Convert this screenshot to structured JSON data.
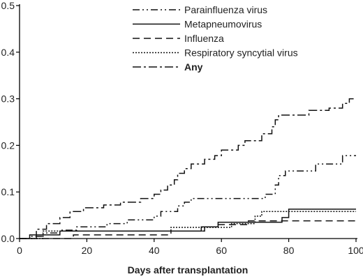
{
  "chart_data": {
    "type": "line",
    "title": "",
    "xlabel": "Days after transplantation",
    "ylabel": "",
    "xlim": [
      0,
      100
    ],
    "ylim": [
      0,
      0.5
    ],
    "x_ticks": [
      0,
      20,
      40,
      60,
      80,
      100
    ],
    "x_tick_labels": [
      "0",
      "20",
      "40",
      "60",
      "80",
      "100"
    ],
    "y_ticks": [
      0.0,
      0.1,
      0.2,
      0.3,
      0.4,
      0.5
    ],
    "y_tick_labels": [
      "0.0",
      "0.1",
      "0.2",
      "0.3",
      "0.4",
      "0.5"
    ],
    "grid": false,
    "legend_position": "top-center",
    "step": true,
    "series": [
      {
        "name": "Parainfluenza virus",
        "dash": "dashdotdot",
        "points": [
          [
            0,
            0
          ],
          [
            3,
            0
          ],
          [
            3,
            0.005
          ],
          [
            7,
            0.005
          ],
          [
            7,
            0.012
          ],
          [
            12,
            0.012
          ],
          [
            12,
            0.018
          ],
          [
            17,
            0.018
          ],
          [
            17,
            0.025
          ],
          [
            26,
            0.025
          ],
          [
            26,
            0.032
          ],
          [
            32,
            0.032
          ],
          [
            32,
            0.04
          ],
          [
            40,
            0.04
          ],
          [
            40,
            0.048
          ],
          [
            42,
            0.048
          ],
          [
            42,
            0.058
          ],
          [
            47,
            0.058
          ],
          [
            47,
            0.07
          ],
          [
            49,
            0.07
          ],
          [
            49,
            0.078
          ],
          [
            51,
            0.078
          ],
          [
            51,
            0.086
          ],
          [
            73,
            0.086
          ],
          [
            73,
            0.095
          ],
          [
            76,
            0.095
          ],
          [
            76,
            0.115
          ],
          [
            77,
            0.115
          ],
          [
            77,
            0.135
          ],
          [
            79,
            0.135
          ],
          [
            79,
            0.145
          ],
          [
            88,
            0.145
          ],
          [
            88,
            0.16
          ],
          [
            96,
            0.16
          ],
          [
            96,
            0.178
          ],
          [
            100,
            0.178
          ]
        ]
      },
      {
        "name": "Metapneumovirus",
        "dash": "solid",
        "points": [
          [
            0,
            0
          ],
          [
            3,
            0
          ],
          [
            3,
            0.008
          ],
          [
            12,
            0.008
          ],
          [
            12,
            0.016
          ],
          [
            54,
            0.016
          ],
          [
            54,
            0.025
          ],
          [
            59,
            0.025
          ],
          [
            59,
            0.035
          ],
          [
            78,
            0.035
          ],
          [
            78,
            0.045
          ],
          [
            80,
            0.045
          ],
          [
            80,
            0.063
          ],
          [
            100,
            0.063
          ]
        ]
      },
      {
        "name": "Influenza",
        "dash": "dashed",
        "points": [
          [
            0,
            0
          ],
          [
            16,
            0
          ],
          [
            16,
            0.008
          ],
          [
            45,
            0.008
          ],
          [
            45,
            0.016
          ],
          [
            55,
            0.016
          ],
          [
            55,
            0.025
          ],
          [
            59,
            0.025
          ],
          [
            59,
            0.03
          ],
          [
            68,
            0.03
          ],
          [
            68,
            0.038
          ],
          [
            100,
            0.038
          ]
        ]
      },
      {
        "name": "Respiratory syncytial virus",
        "dash": "dotted",
        "points": [
          [
            0,
            0
          ],
          [
            7,
            0
          ],
          [
            7,
            0.016
          ],
          [
            45,
            0.016
          ],
          [
            45,
            0.024
          ],
          [
            63,
            0.024
          ],
          [
            63,
            0.032
          ],
          [
            70,
            0.032
          ],
          [
            70,
            0.048
          ],
          [
            72,
            0.048
          ],
          [
            72,
            0.058
          ],
          [
            100,
            0.058
          ]
        ]
      },
      {
        "name": "Any",
        "dash": "dashdot",
        "points": [
          [
            0,
            0
          ],
          [
            5,
            0
          ],
          [
            5,
            0.02
          ],
          [
            8,
            0.02
          ],
          [
            8,
            0.032
          ],
          [
            12,
            0.032
          ],
          [
            12,
            0.045
          ],
          [
            15,
            0.045
          ],
          [
            15,
            0.058
          ],
          [
            19,
            0.058
          ],
          [
            19,
            0.066
          ],
          [
            25,
            0.066
          ],
          [
            25,
            0.072
          ],
          [
            30,
            0.072
          ],
          [
            30,
            0.078
          ],
          [
            36,
            0.078
          ],
          [
            36,
            0.086
          ],
          [
            40,
            0.086
          ],
          [
            40,
            0.095
          ],
          [
            42,
            0.095
          ],
          [
            42,
            0.104
          ],
          [
            44,
            0.104
          ],
          [
            44,
            0.115
          ],
          [
            46,
            0.115
          ],
          [
            46,
            0.126
          ],
          [
            47,
            0.126
          ],
          [
            47,
            0.14
          ],
          [
            49,
            0.14
          ],
          [
            49,
            0.15
          ],
          [
            51,
            0.15
          ],
          [
            51,
            0.16
          ],
          [
            55,
            0.16
          ],
          [
            55,
            0.17
          ],
          [
            58,
            0.17
          ],
          [
            58,
            0.178
          ],
          [
            60,
            0.178
          ],
          [
            60,
            0.19
          ],
          [
            65,
            0.19
          ],
          [
            65,
            0.2
          ],
          [
            67,
            0.2
          ],
          [
            67,
            0.21
          ],
          [
            72,
            0.21
          ],
          [
            72,
            0.225
          ],
          [
            75,
            0.225
          ],
          [
            75,
            0.24
          ],
          [
            76,
            0.24
          ],
          [
            76,
            0.255
          ],
          [
            77,
            0.255
          ],
          [
            77,
            0.265
          ],
          [
            86,
            0.265
          ],
          [
            86,
            0.275
          ],
          [
            92,
            0.275
          ],
          [
            92,
            0.28
          ],
          [
            96,
            0.28
          ],
          [
            96,
            0.29
          ],
          [
            98,
            0.29
          ],
          [
            98,
            0.3
          ],
          [
            100,
            0.3
          ]
        ]
      }
    ]
  }
}
